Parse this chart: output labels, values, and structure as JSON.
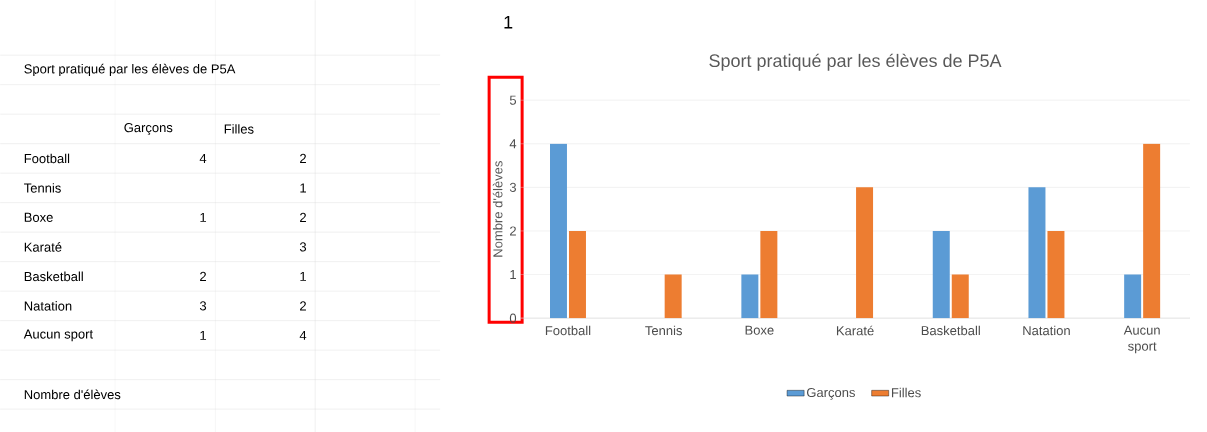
{
  "chart_data": {
    "type": "bar",
    "title": "Sport pratiqué par les élèves de P5A",
    "ylabel": "Nombre d'élèves",
    "categories": [
      "Football",
      "Tennis",
      "Boxe",
      "Karaté",
      "Basketball",
      "Natation",
      "Aucun sport"
    ],
    "series": [
      {
        "name": "Garçons",
        "color": "#5b9bd5",
        "values": [
          4,
          0,
          1,
          0,
          2,
          3,
          1
        ]
      },
      {
        "name": "Filles",
        "color": "#ed7d31",
        "values": [
          2,
          1,
          2,
          3,
          1,
          2,
          4
        ]
      }
    ],
    "ylim": [
      0,
      5
    ],
    "yticks": [
      0,
      1,
      2,
      3,
      4,
      5
    ],
    "grid": "y",
    "legend": "bottom",
    "annotations": [
      "1",
      "4",
      "2",
      "1",
      "1",
      "2",
      "3",
      "2",
      "1",
      "3",
      "2",
      "1",
      "4"
    ]
  }
}
